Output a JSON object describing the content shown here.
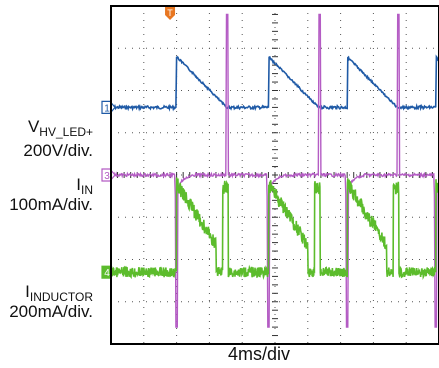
{
  "chart_data": {
    "type": "line",
    "title": "",
    "xlabel": "4ms/div",
    "ylabel": "",
    "grid": true,
    "x_divisions": 10,
    "y_divisions": 8,
    "trigger_marker": {
      "label": "T",
      "color": "#e87722"
    },
    "series": [
      {
        "label_main": "V",
        "label_sub": "HV_LED+",
        "scale": "200V/div.",
        "channel": "1",
        "color": "#1f5aa6",
        "baseline_div": 2.4,
        "peak_div": 1.2,
        "shape": "sawtooth"
      },
      {
        "label_main": "I",
        "label_sub": "IN",
        "scale": "100mA/div.",
        "channel": "3",
        "color": "#b45cc4",
        "baseline_div": 4.0,
        "spike_up_div": 3.8,
        "spike_down_div": 3.6,
        "shape": "spike"
      },
      {
        "label_main": "I",
        "label_sub": "INDUCTOR",
        "scale": "200mA/div.",
        "channel": "4",
        "color": "#5cbc2c",
        "baseline_div": 6.3,
        "peak_div": 2.1,
        "shape": "pulse"
      }
    ]
  }
}
